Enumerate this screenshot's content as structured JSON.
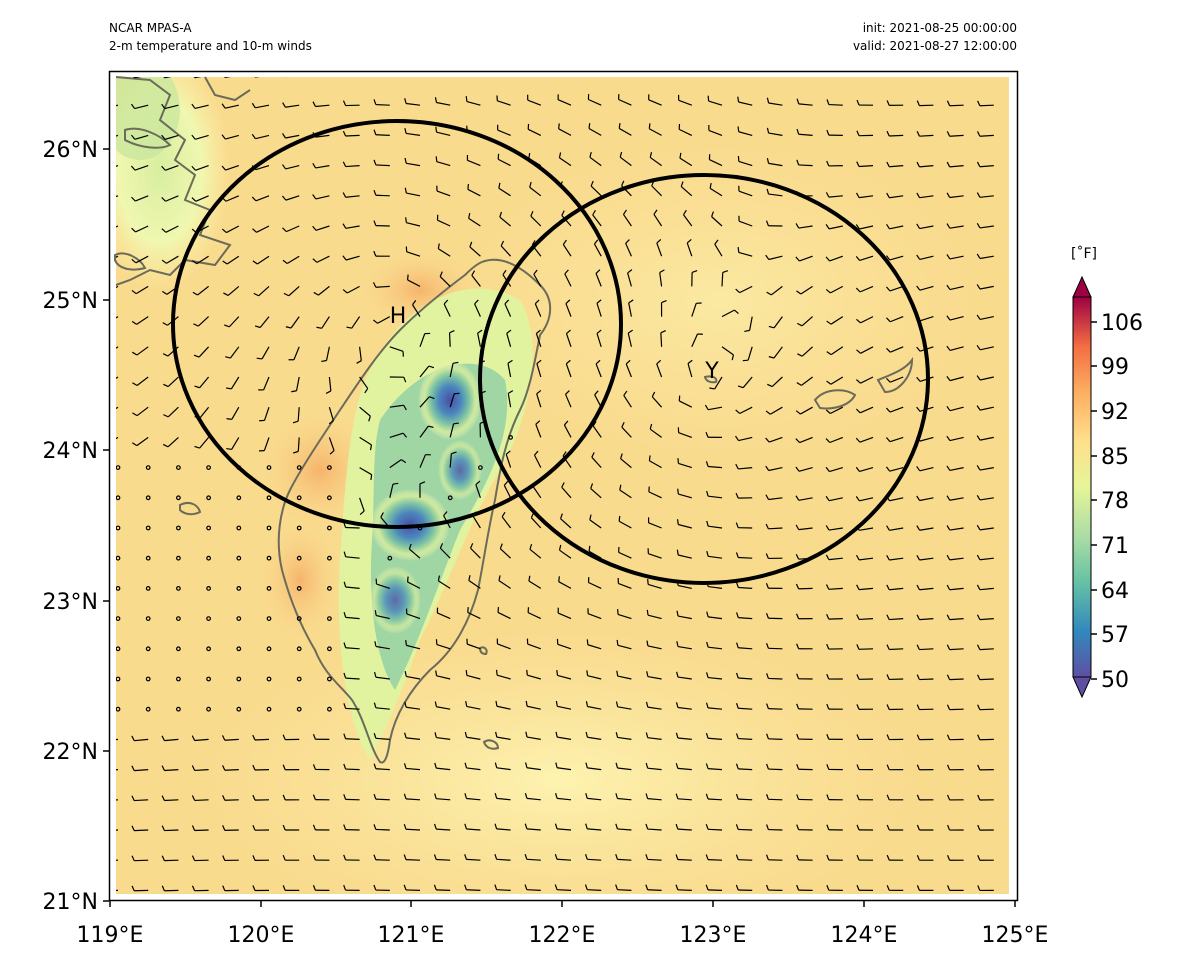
{
  "header": {
    "model": "NCAR MPAS-A",
    "field": "2-m temperature and 10-m winds",
    "init": "init: 2021-08-25 00:00:00",
    "valid": "valid: 2021-08-27 12:00:00"
  },
  "map": {
    "projection": "PlateCarree",
    "lon_range": [
      119,
      125
    ],
    "lat_range": [
      21,
      26.5
    ],
    "lon_ticks": [
      "119°E",
      "120°E",
      "121°E",
      "122°E",
      "123°E",
      "124°E",
      "125°E"
    ],
    "lat_ticks": [
      "21°N",
      "22°N",
      "23°N",
      "24°N",
      "25°N",
      "26°N"
    ],
    "coastline_color": "#6b6b5a",
    "background_color": "#f9db8e",
    "markers": [
      {
        "label": "H",
        "lon": 120.95,
        "lat": 24.85,
        "circle_radius_deg": 1.5
      },
      {
        "label": "Y",
        "lon": 122.95,
        "lat": 24.47,
        "circle_radius_deg": 1.5
      }
    ],
    "circle_color": "#000000",
    "wind_barbs": "10-m winds, grid spacing ~0.2°"
  },
  "colorbar": {
    "unit": "[˚F]",
    "ticks": [
      "106",
      "99",
      "92",
      "85",
      "78",
      "71",
      "64",
      "57",
      "50"
    ],
    "min": 50,
    "max": 110,
    "colormap": "Spectral_r",
    "extend": "both"
  }
}
